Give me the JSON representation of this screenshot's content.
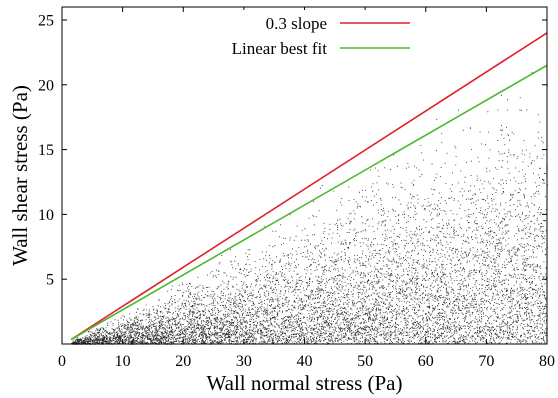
{
  "chart_data": {
    "type": "scatter",
    "title": "",
    "xlabel": "Wall normal stress (Pa)",
    "ylabel": "Wall shear stress (Pa)",
    "xlim": [
      0,
      80
    ],
    "ylim": [
      0,
      26
    ],
    "x_ticks": [
      0,
      10,
      20,
      30,
      40,
      50,
      60,
      70,
      80
    ],
    "y_ticks": [
      5,
      10,
      15,
      20,
      25
    ],
    "grid": false,
    "legend_position": "top-center",
    "series": [
      {
        "name": "0.3 slope",
        "kind": "line",
        "color": "#e0202a",
        "points": [
          [
            1.5,
            0.35
          ],
          [
            80,
            24.0
          ]
        ]
      },
      {
        "name": "Linear best fit",
        "kind": "line",
        "color": "#4bb82e",
        "points": [
          [
            1.5,
            0.35
          ],
          [
            80,
            21.5
          ]
        ]
      }
    ],
    "scatter": {
      "color": "#000000",
      "description_points_visible": "dense cloud of small black dots bounded above by the 0.3 slope line, concentrated near the line and thinning toward the lower right",
      "upper_slope": 0.3,
      "x_range": [
        1.5,
        80
      ],
      "y_range": [
        0,
        24
      ]
    }
  }
}
